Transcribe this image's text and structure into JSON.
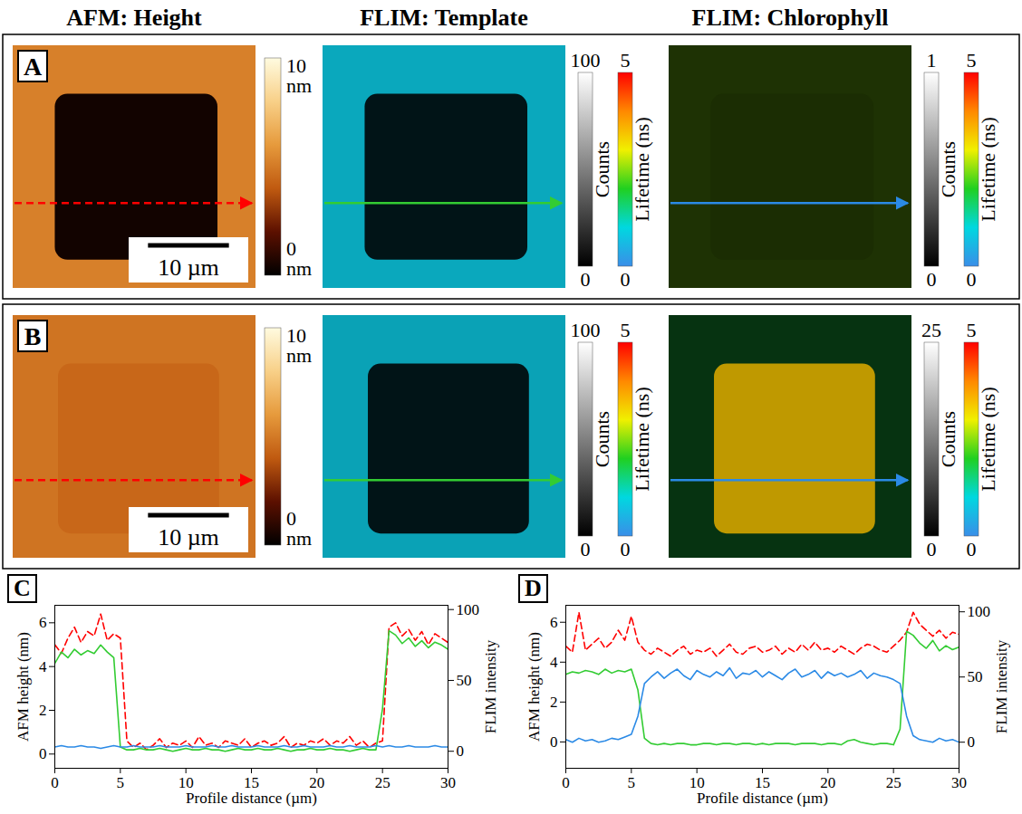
{
  "column_titles": [
    "AFM: Height",
    "FLIM: Template",
    "FLIM: Chlorophyll"
  ],
  "image_rows": [
    {
      "label": "A",
      "field_um": 30,
      "square_x_um": [
        5.2,
        25.3
      ],
      "square_y_um": [
        6,
        26.5
      ],
      "profile_y_um": 19.5,
      "panels": [
        {
          "background": {
            "height": 5.2
          },
          "square": {
            "height": 0.4
          },
          "scale_bar_um": 10,
          "scale_bar_label": "10 µm",
          "colorbars": [
            {
              "range": [
                0,
                10
              ],
              "ticks": [
                {
                  "value": 0,
                  "label": "0 nm"
                },
                {
                  "value": 10,
                  "label": "10 nm"
                }
              ],
              "colors": [
                "#000000",
                "#5c1000",
                "#c05a10",
                "#e69a3c",
                "#f8d088",
                "#fffbe0"
              ]
            }
          ]
        },
        {
          "background": {
            "counts": 70,
            "lifetime": 0.8
          },
          "square": {
            "counts": 1,
            "lifetime": 0.8
          },
          "colorbars": [
            {
              "label": "Counts",
              "range": [
                0,
                100
              ],
              "ticks": [
                0,
                100
              ],
              "colors": [
                "#000000",
                "#ffffff"
              ]
            },
            {
              "label": "Lifetime (ns)",
              "range": [
                0,
                5
              ],
              "ticks": [
                0,
                5
              ],
              "colors": [
                "#3a8ee8",
                "#00d8e0",
                "#20d020",
                "#f0f000",
                "#ff8800",
                "#ff0000"
              ]
            }
          ]
        },
        {
          "background": {
            "counts": 0.05,
            "lifetime": 2.5
          },
          "square": {
            "counts": 0.04,
            "lifetime": 2.5
          },
          "colorbars": [
            {
              "label": "Counts",
              "range": [
                0,
                1
              ],
              "ticks": [
                0,
                1
              ],
              "colors": [
                "#000000",
                "#ffffff"
              ]
            },
            {
              "label": "Lifetime (ns)",
              "range": [
                0,
                5
              ],
              "ticks": [
                0,
                5
              ],
              "colors": [
                "#3a8ee8",
                "#00d8e0",
                "#20d020",
                "#f0f000",
                "#ff8800",
                "#ff0000"
              ]
            }
          ]
        }
      ]
    },
    {
      "label": "B",
      "field_um": 30,
      "square_x_um": [
        5.6,
        25.5
      ],
      "square_y_um": [
        6,
        27
      ],
      "profile_y_um": 20.4,
      "panels": [
        {
          "background": {
            "height": 4.8
          },
          "square": {
            "height": 4.4
          },
          "scale_bar_um": 10,
          "scale_bar_label": "10 µm",
          "colorbars": [
            {
              "range": [
                0,
                10
              ],
              "ticks": [
                {
                  "value": 0,
                  "label": "0 nm"
                },
                {
                  "value": 10,
                  "label": "10 nm"
                }
              ],
              "colors": [
                "#000000",
                "#5c1000",
                "#c05a10",
                "#e69a3c",
                "#f8d088",
                "#fffbe0"
              ]
            }
          ]
        },
        {
          "background": {
            "counts": 65,
            "lifetime": 0.8
          },
          "square": {
            "counts": 1,
            "lifetime": 0.8
          },
          "colorbars": [
            {
              "label": "Counts",
              "range": [
                0,
                100
              ],
              "ticks": [
                0,
                100
              ],
              "colors": [
                "#000000",
                "#ffffff"
              ]
            },
            {
              "label": "Lifetime (ns)",
              "range": [
                0,
                5
              ],
              "ticks": [
                0,
                5
              ],
              "colors": [
                "#3a8ee8",
                "#00d8e0",
                "#20d020",
                "#f0f000",
                "#ff8800",
                "#ff0000"
              ]
            }
          ]
        },
        {
          "background": {
            "counts": 1.5,
            "lifetime": 1.8
          },
          "square": {
            "counts": 15,
            "lifetime": 3.4
          },
          "colorbars": [
            {
              "label": "Counts",
              "range": [
                0,
                25
              ],
              "ticks": [
                0,
                25
              ],
              "colors": [
                "#000000",
                "#ffffff"
              ]
            },
            {
              "label": "Lifetime (ns)",
              "range": [
                0,
                5
              ],
              "ticks": [
                0,
                5
              ],
              "colors": [
                "#3a8ee8",
                "#00d8e0",
                "#20d020",
                "#f0f000",
                "#ff8800",
                "#ff0000"
              ]
            }
          ]
        }
      ]
    }
  ],
  "chart_data": [
    {
      "panel": "C",
      "type": "line",
      "x_label": "Profile distance (µm)",
      "y_label": "AFM height (nm)",
      "y2_label": "FLIM intensity",
      "xlim": [
        0,
        30
      ],
      "xticks": [
        0,
        5,
        10,
        15,
        20,
        25,
        30
      ],
      "ylim": [
        -0.65,
        6.8
      ],
      "yticks": [
        0,
        2,
        4,
        6
      ],
      "y2lim": [
        -12,
        103
      ],
      "y2ticks": [
        0,
        50,
        100
      ],
      "x": [
        0,
        0.5,
        1,
        1.5,
        2,
        2.5,
        3,
        3.5,
        4,
        4.5,
        5,
        5.5,
        6,
        6.5,
        7,
        7.5,
        8,
        8.5,
        9,
        9.5,
        10,
        10.5,
        11,
        11.5,
        12,
        12.5,
        13,
        13.5,
        14,
        14.5,
        15,
        15.5,
        16,
        16.5,
        17,
        17.5,
        18,
        18.5,
        19,
        19.5,
        20,
        20.5,
        21,
        21.5,
        22,
        22.5,
        23,
        23.5,
        24,
        24.5,
        25,
        25.5,
        26,
        26.5,
        27,
        27.5,
        28,
        28.5,
        29,
        29.5,
        30
      ],
      "series": [
        {
          "color": "#ff0000",
          "line_style": "dashed",
          "axis": "y",
          "values": [
            5.0,
            4.6,
            5.3,
            5.8,
            5.1,
            5.6,
            5.4,
            6.4,
            5.2,
            5.5,
            5.3,
            0.6,
            0.3,
            0.5,
            0.2,
            0.4,
            0.7,
            0.3,
            0.5,
            0.4,
            0.6,
            0.3,
            0.8,
            0.4,
            0.5,
            0.3,
            0.6,
            0.5,
            0.4,
            0.7,
            0.3,
            0.5,
            0.6,
            0.4,
            0.5,
            0.8,
            0.3,
            0.5,
            0.4,
            0.6,
            0.5,
            0.7,
            0.4,
            0.6,
            0.5,
            0.8,
            0.4,
            0.6,
            0.3,
            0.5,
            0.6,
            5.8,
            6.0,
            5.4,
            5.7,
            5.2,
            5.6,
            5.0,
            5.5,
            5.3,
            5.1
          ]
        },
        {
          "color": "#33cc33",
          "line_style": "solid",
          "axis": "y2",
          "values": [
            62,
            70,
            66,
            72,
            68,
            71,
            69,
            75,
            70,
            66,
            3,
            1,
            1,
            2,
            1,
            1,
            2,
            1,
            0,
            1,
            2,
            1,
            1,
            2,
            1,
            1,
            0,
            1,
            2,
            1,
            1,
            2,
            1,
            1,
            2,
            1,
            0,
            1,
            1,
            2,
            1,
            1,
            2,
            1,
            1,
            0,
            1,
            2,
            1,
            1,
            30,
            85,
            82,
            76,
            80,
            74,
            78,
            73,
            77,
            75,
            72
          ]
        },
        {
          "color": "#2b8ae6",
          "line_style": "solid",
          "axis": "y2",
          "values": [
            3,
            4,
            3,
            3,
            4,
            3,
            3,
            2,
            3,
            4,
            3,
            3,
            4,
            3,
            3,
            3,
            4,
            3,
            3,
            3,
            4,
            3,
            3,
            3,
            4,
            3,
            3,
            4,
            3,
            3,
            3,
            4,
            3,
            3,
            3,
            4,
            3,
            3,
            4,
            3,
            3,
            3,
            4,
            3,
            3,
            4,
            3,
            3,
            3,
            4,
            3,
            4,
            3,
            3,
            4,
            3,
            3,
            3,
            4,
            3,
            3
          ]
        }
      ]
    },
    {
      "panel": "D",
      "type": "line",
      "x_label": "Profile distance (µm)",
      "y_label": "AFM height (nm)",
      "y2_label": "FLIM intensity",
      "xlim": [
        0,
        30
      ],
      "xticks": [
        0,
        5,
        10,
        15,
        20,
        25,
        30
      ],
      "ylim": [
        -1.32,
        6.85
      ],
      "yticks": [
        0,
        2,
        4,
        6
      ],
      "y2lim": [
        -20,
        105
      ],
      "y2ticks": [
        0,
        50,
        100
      ],
      "x": [
        0,
        0.5,
        1,
        1.5,
        2,
        2.5,
        3,
        3.5,
        4,
        4.5,
        5,
        5.5,
        6,
        6.5,
        7,
        7.5,
        8,
        8.5,
        9,
        9.5,
        10,
        10.5,
        11,
        11.5,
        12,
        12.5,
        13,
        13.5,
        14,
        14.5,
        15,
        15.5,
        16,
        16.5,
        17,
        17.5,
        18,
        18.5,
        19,
        19.5,
        20,
        20.5,
        21,
        21.5,
        22,
        22.5,
        23,
        23.5,
        24,
        24.5,
        25,
        25.5,
        26,
        26.5,
        27,
        27.5,
        28,
        28.5,
        29,
        29.5,
        30
      ],
      "series": [
        {
          "color": "#ff0000",
          "line_style": "dashed",
          "axis": "y",
          "values": [
            4.8,
            4.5,
            6.5,
            4.6,
            4.9,
            5.2,
            4.7,
            5.0,
            5.6,
            5.1,
            6.3,
            5.0,
            4.6,
            4.4,
            4.7,
            4.5,
            4.3,
            4.6,
            4.8,
            4.4,
            4.6,
            4.5,
            4.7,
            4.3,
            4.6,
            4.9,
            4.5,
            4.4,
            4.7,
            4.8,
            4.5,
            4.6,
            4.8,
            4.4,
            4.7,
            4.5,
            4.9,
            4.6,
            5.0,
            4.6,
            4.7,
            4.5,
            4.8,
            4.6,
            4.4,
            4.7,
            4.9,
            4.8,
            4.6,
            4.5,
            4.8,
            5.1,
            5.5,
            6.5,
            5.9,
            5.6,
            5.3,
            5.6,
            5.2,
            5.5,
            5.4
          ]
        },
        {
          "color": "#33cc33",
          "line_style": "solid",
          "axis": "y2",
          "values": [
            52,
            54,
            53,
            55,
            54,
            52,
            56,
            53,
            55,
            54,
            56,
            40,
            3,
            -1,
            -2,
            -1,
            -2,
            -1,
            -1,
            -2,
            -2,
            -1,
            -1,
            -2,
            -1,
            -1,
            -2,
            -1,
            -1,
            -2,
            -1,
            -2,
            -1,
            -1,
            -1,
            -2,
            -1,
            -1,
            -1,
            -2,
            -1,
            -1,
            -2,
            1,
            2,
            0,
            -1,
            -2,
            -1,
            -1,
            -2,
            10,
            85,
            82,
            76,
            72,
            78,
            70,
            74,
            71,
            73
          ]
        },
        {
          "color": "#2b8ae6",
          "line_style": "solid",
          "axis": "y2",
          "values": [
            2,
            0,
            3,
            1,
            2,
            0,
            1,
            3,
            2,
            4,
            6,
            20,
            45,
            50,
            54,
            49,
            53,
            56,
            51,
            48,
            55,
            52,
            50,
            54,
            51,
            57,
            49,
            53,
            52,
            55,
            50,
            54,
            51,
            48,
            53,
            56,
            50,
            52,
            55,
            49,
            54,
            51,
            53,
            50,
            52,
            55,
            49,
            53,
            51,
            50,
            48,
            45,
            20,
            5,
            2,
            1,
            0,
            3,
            1,
            2,
            0
          ]
        }
      ]
    }
  ]
}
